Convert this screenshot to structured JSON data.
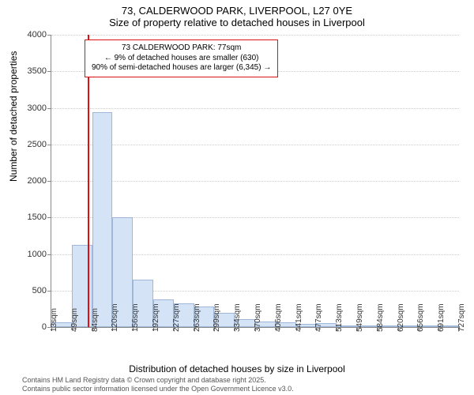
{
  "title": {
    "line1": "73, CALDERWOOD PARK, LIVERPOOL, L27 0YE",
    "line2": "Size of property relative to detached houses in Liverpool"
  },
  "chart": {
    "type": "histogram",
    "ylabel": "Number of detached properties",
    "xlabel": "Distribution of detached houses by size in Liverpool",
    "ylim": [
      0,
      4000
    ],
    "ytick_step": 500,
    "bar_color": "#d4e3f5",
    "bar_border_color": "#9fb8d9",
    "grid_color": "#cccccc",
    "axis_color": "#888888",
    "background_color": "#ffffff",
    "marker_color": "#dd1111",
    "marker_x_index": 2,
    "x_labels": [
      "13sqm",
      "49sqm",
      "84sqm",
      "120sqm",
      "156sqm",
      "192sqm",
      "227sqm",
      "263sqm",
      "299sqm",
      "334sqm",
      "370sqm",
      "406sqm",
      "441sqm",
      "477sqm",
      "513sqm",
      "549sqm",
      "584sqm",
      "620sqm",
      "656sqm",
      "691sqm",
      "727sqm"
    ],
    "values": [
      70,
      1120,
      2940,
      1500,
      650,
      380,
      320,
      280,
      200,
      110,
      80,
      60,
      40,
      50,
      10,
      5,
      5,
      5,
      0,
      5
    ]
  },
  "annotation": {
    "line1": "73 CALDERWOOD PARK: 77sqm",
    "line2": "← 9% of detached houses are smaller (630)",
    "line3": "90% of semi-detached houses are larger (6,345) →"
  },
  "footer": {
    "line1": "Contains HM Land Registry data © Crown copyright and database right 2025.",
    "line2": "Contains public sector information licensed under the Open Government Licence v3.0."
  },
  "yticks": [
    "0",
    "500",
    "1000",
    "1500",
    "2000",
    "2500",
    "3000",
    "3500",
    "4000"
  ]
}
